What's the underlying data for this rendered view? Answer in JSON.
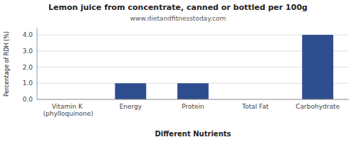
{
  "chart_data": {
    "type": "bar",
    "title": "Lemon juice from concentrate, canned or bottled per 100g",
    "subtitle": "www.dietandfitnesstoday.com",
    "xlabel": "Different Nutrients",
    "ylabel": "Percentage of RDH (%)",
    "categories": [
      "Vitamin K (phylloquinone)",
      "Energy",
      "Protein",
      "Total Fat",
      "Carbohydrate"
    ],
    "values": [
      0.0,
      1.0,
      1.0,
      0.0,
      4.0
    ],
    "color": "#2e4d8e",
    "ylim": [
      0,
      4.4
    ],
    "yticks": [
      {
        "value": 0.0,
        "label": "0.0"
      },
      {
        "value": 1.0,
        "label": "1.0"
      },
      {
        "value": 2.0,
        "label": "2.0"
      },
      {
        "value": 3.0,
        "label": "3.0"
      },
      {
        "value": 4.0,
        "label": "4.0"
      }
    ],
    "grid": true
  }
}
